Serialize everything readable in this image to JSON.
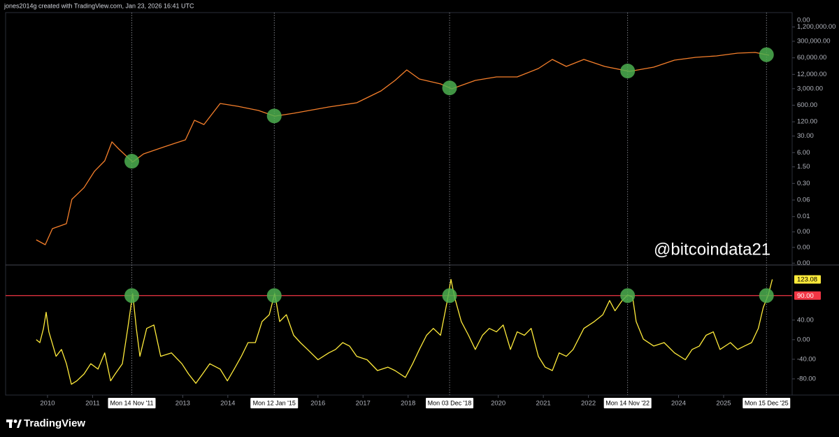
{
  "header": "jones2014g created with TradingView.com, Jan 23, 2026 16:41 UTC",
  "watermark": "@bitcoindata21",
  "footer": "TradingView",
  "x_axis": {
    "xlim": [
      2009.07,
      2026.52
    ],
    "xticks": [
      2010,
      2011,
      2013,
      2014,
      2016,
      2017,
      2018,
      2020,
      2021,
      2022,
      2024,
      2025
    ],
    "markers": [
      {
        "value": 2011.87,
        "label": "Mon 14 Nov '11"
      },
      {
        "value": 2015.03,
        "label": "Mon 12 Jan '15"
      },
      {
        "value": 2018.92,
        "label": "Mon 03 Dec '18"
      },
      {
        "value": 2022.87,
        "label": "Mon 14 Nov '22"
      },
      {
        "value": 2025.95,
        "label": "Mon 15 Dec '25"
      }
    ],
    "marker_color": "#4caf50"
  },
  "chart_data": [
    {
      "type": "line",
      "log_scale": true,
      "color": "#f57f2b",
      "axis_top_label": "0.00",
      "ylim": [
        0.000116,
        4870000
      ],
      "yticks": [
        {
          "value": 1200000,
          "label": "1,200,000.00"
        },
        {
          "value": 300000,
          "label": "300,000.00"
        },
        {
          "value": 60000,
          "label": "60,000.00"
        },
        {
          "value": 12000,
          "label": "12,000.00"
        },
        {
          "value": 3000,
          "label": "3,000.00"
        },
        {
          "value": 600,
          "label": "600.00"
        },
        {
          "value": 120,
          "label": "120.00"
        },
        {
          "value": 30,
          "label": "30.00"
        },
        {
          "value": 6,
          "label": "6.00"
        },
        {
          "value": 1.5,
          "label": "1.50"
        },
        {
          "value": 0.3,
          "label": "0.30"
        },
        {
          "value": 0.06,
          "label": "0.06"
        },
        {
          "value": 0.012,
          "label": "0.01"
        },
        {
          "value": 0.0027,
          "label": "0.00"
        },
        {
          "value": 0.0006,
          "label": "0.00"
        },
        {
          "value": 0.00013,
          "label": "0.00"
        }
      ],
      "x": [
        2009.75,
        2009.95,
        2010.11,
        2010.42,
        2010.54,
        2010.81,
        2011.04,
        2011.27,
        2011.43,
        2011.58,
        2011.89,
        2012.13,
        2012.59,
        2013.06,
        2013.26,
        2013.47,
        2013.83,
        2014.22,
        2014.68,
        2015.04,
        2015.46,
        2016.24,
        2016.86,
        2017.4,
        2017.71,
        2017.97,
        2018.25,
        2018.72,
        2018.97,
        2019.49,
        2019.96,
        2020.42,
        2020.89,
        2021.2,
        2021.51,
        2021.9,
        2022.36,
        2022.91,
        2023.45,
        2023.91,
        2024.38,
        2024.84,
        2025.31,
        2025.7,
        2026.01
      ],
      "values": [
        0.00125,
        0.00078,
        0.0037,
        0.006,
        0.064,
        0.2,
        0.97,
        2.7,
        17,
        8.6,
        2.4,
        5.3,
        10.5,
        20.7,
        139,
        92,
        710,
        541,
        360,
        208,
        274,
        505,
        759,
        2410,
        6670,
        18500,
        7640,
        4750,
        2950,
        6670,
        9380,
        9380,
        21200,
        51300,
        26000,
        51300,
        26000,
        16100,
        24300,
        47900,
        62800,
        71900,
        94400,
        101000,
        77100
      ]
    },
    {
      "type": "line",
      "log_scale": false,
      "color": "#ffeb3b",
      "ylim": [
        -113,
        151
      ],
      "yticks": [
        {
          "value": 40,
          "label": "40.00"
        },
        {
          "value": 0,
          "label": "0.00"
        },
        {
          "value": -40,
          "label": "-40.00"
        },
        {
          "value": -80,
          "label": "-80.00"
        }
      ],
      "reference_line": {
        "value": 90,
        "label": "90.00",
        "color": "#f23645"
      },
      "x": [
        2009.75,
        2009.83,
        2009.91,
        2009.97,
        2010.03,
        2010.19,
        2010.31,
        2010.42,
        2010.53,
        2010.65,
        2010.81,
        2010.96,
        2011.12,
        2011.27,
        2011.4,
        2011.5,
        2011.66,
        2011.78,
        2011.89,
        2011.97,
        2012.05,
        2012.2,
        2012.36,
        2012.51,
        2012.75,
        2012.98,
        2013.13,
        2013.29,
        2013.44,
        2013.6,
        2013.83,
        2013.99,
        2014.14,
        2014.3,
        2014.45,
        2014.61,
        2014.76,
        2014.92,
        2015.04,
        2015.15,
        2015.3,
        2015.46,
        2015.61,
        2015.77,
        2016.0,
        2016.24,
        2016.39,
        2016.55,
        2016.7,
        2016.86,
        2017.09,
        2017.32,
        2017.55,
        2017.71,
        2017.94,
        2018.1,
        2018.25,
        2018.41,
        2018.56,
        2018.72,
        2018.87,
        2018.95,
        2019.03,
        2019.18,
        2019.34,
        2019.49,
        2019.65,
        2019.8,
        2019.96,
        2020.11,
        2020.27,
        2020.42,
        2020.58,
        2020.73,
        2020.89,
        2021.04,
        2021.2,
        2021.35,
        2021.51,
        2021.66,
        2021.9,
        2022.13,
        2022.32,
        2022.47,
        2022.59,
        2022.75,
        2022.87,
        2022.98,
        2023.06,
        2023.22,
        2023.45,
        2023.68,
        2023.91,
        2024.15,
        2024.3,
        2024.46,
        2024.61,
        2024.77,
        2024.92,
        2025.15,
        2025.31,
        2025.46,
        2025.62,
        2025.77,
        2025.88,
        2025.99,
        2026.08
      ],
      "values": [
        0,
        -6,
        23,
        56,
        16,
        -34,
        -20,
        -49,
        -91,
        -84,
        -70,
        -49,
        -60,
        -27,
        -84,
        -70,
        -49,
        23,
        94,
        23,
        -34,
        23,
        30,
        -34,
        -27,
        -49,
        -70,
        -89,
        -70,
        -49,
        -60,
        -84,
        -60,
        -34,
        -6,
        -6,
        37,
        51,
        94,
        37,
        51,
        9,
        -6,
        -20,
        -41,
        -27,
        -20,
        -6,
        -13,
        -34,
        -41,
        -63,
        -56,
        -63,
        -77,
        -49,
        -20,
        9,
        23,
        9,
        80,
        123,
        87,
        37,
        9,
        -20,
        9,
        23,
        16,
        30,
        -20,
        16,
        9,
        23,
        -34,
        -56,
        -63,
        -27,
        -34,
        -20,
        23,
        37,
        51,
        80,
        59,
        80,
        91,
        87,
        37,
        1,
        -13,
        -6,
        -27,
        -41,
        -20,
        -13,
        9,
        16,
        -20,
        -6,
        -20,
        -13,
        -6,
        23,
        66,
        91,
        123.08
      ]
    }
  ]
}
